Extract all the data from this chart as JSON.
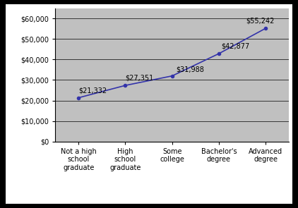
{
  "categories": [
    "Not a high\nschool\ngraduate",
    "High\nschool\ngraduate",
    "Some\ncollege",
    "Bachelor's\ndegree",
    "Advanced\ndegree"
  ],
  "values": [
    21332,
    27351,
    31988,
    42877,
    55242
  ],
  "labels": [
    "$21,332",
    "$27,351",
    "$31,988",
    "$42,877",
    "$55,242"
  ],
  "line_color": "#3333aa",
  "marker": "o",
  "marker_size": 3,
  "plot_bg_color": "#c0c0c0",
  "fig_bg_color": "#ffffff",
  "outer_border_color": "#000000",
  "ylim": [
    0,
    65000
  ],
  "yticks": [
    0,
    10000,
    20000,
    30000,
    40000,
    50000,
    60000
  ],
  "grid_color": "#000000",
  "grid_linewidth": 0.5,
  "font_size": 7,
  "label_font_size": 7,
  "tick_label_font": "monospace"
}
